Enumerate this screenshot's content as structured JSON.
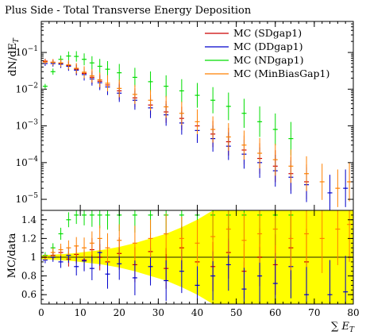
{
  "chart_data": {
    "type": "scatter",
    "title": "Plus Side - Total Transverse Energy Deposition",
    "xlabel": "∑ E_T",
    "ylabel": "dN/dE_T",
    "ratio_ylabel": "MC/data",
    "xlim": [
      0,
      80
    ],
    "ylim": [
      5e-06,
      0.7
    ],
    "yscale": "log",
    "ratio_ylim": [
      0.5,
      1.5
    ],
    "x_ticks": [
      "0",
      "10",
      "20",
      "30",
      "40",
      "50",
      "60",
      "70",
      "80"
    ],
    "y_ticks": [
      {
        "value": 0.1,
        "label": "10^-1"
      },
      {
        "value": 0.01,
        "label": "10^-2"
      },
      {
        "value": 0.001,
        "label": "10^-3"
      },
      {
        "value": 0.0001,
        "label": "10^-4"
      },
      {
        "value": 1e-05,
        "label": "10^-5"
      }
    ],
    "ratio_ticks": [
      "0.6",
      "0.8",
      "1",
      "1.2",
      "1.4"
    ],
    "legend_position": "top-right",
    "data_band_color": "#ffff00",
    "reference_line_color": "#6b6b00",
    "series": [
      {
        "name": "MC (SDgap1)",
        "color": "#cc0000",
        "x": [
          1,
          3,
          5,
          7,
          9,
          11,
          13,
          15,
          17,
          20,
          24,
          28,
          32,
          36,
          40,
          44,
          48,
          52,
          56,
          60,
          64,
          68
        ],
        "y": [
          0.058,
          0.054,
          0.05,
          0.044,
          0.035,
          0.027,
          0.021,
          0.0165,
          0.013,
          0.009,
          0.0058,
          0.0037,
          0.0024,
          0.0016,
          0.001,
          0.0006,
          0.00037,
          0.00022,
          0.00013,
          8e-05,
          5e-05,
          3e-05
        ],
        "ratio": [
          1.0,
          1.02,
          1.05,
          0.98,
          1.03,
          0.97,
          1.08,
          1.0,
          0.95,
          1.04,
          0.92,
          1.06,
          0.88,
          1.1,
          0.95,
          0.9,
          1.05,
          0.85,
          1.0,
          0.92,
          1.1,
          0.95
        ]
      },
      {
        "name": "MC (DDgap1)",
        "color": "#0000cc",
        "x": [
          1,
          3,
          5,
          7,
          9,
          11,
          13,
          15,
          17,
          20,
          24,
          28,
          32,
          36,
          40,
          44,
          48,
          52,
          56,
          60,
          64,
          68,
          74,
          78
        ],
        "y": [
          0.05,
          0.05,
          0.048,
          0.042,
          0.033,
          0.025,
          0.019,
          0.015,
          0.0115,
          0.0078,
          0.005,
          0.0031,
          0.002,
          0.0012,
          0.00075,
          0.00045,
          0.00028,
          0.00017,
          0.0001,
          6e-05,
          4e-05,
          2.5e-05,
          1.5e-05,
          2e-05
        ],
        "ratio": [
          0.97,
          1.0,
          0.95,
          1.02,
          0.9,
          0.96,
          0.88,
          1.05,
          0.82,
          0.93,
          0.78,
          0.9,
          0.75,
          0.85,
          0.7,
          0.8,
          0.92,
          0.66,
          0.8,
          0.72,
          0.9,
          0.6,
          0.6,
          0.63
        ]
      },
      {
        "name": "MC (NDgap1)",
        "color": "#00dd00",
        "x": [
          1,
          3,
          5,
          7,
          9,
          11,
          13,
          15,
          17,
          20,
          24,
          28,
          32,
          36,
          40,
          44,
          48,
          52,
          56,
          60,
          64
        ],
        "y": [
          0.012,
          0.03,
          0.065,
          0.08,
          0.078,
          0.065,
          0.052,
          0.042,
          0.035,
          0.028,
          0.021,
          0.016,
          0.012,
          0.009,
          0.0068,
          0.005,
          0.0034,
          0.0022,
          0.0013,
          0.0008,
          0.00045
        ],
        "ratio": [
          1.02,
          1.1,
          1.25,
          1.4,
          1.45,
          1.45,
          1.45,
          1.45,
          1.45,
          1.45,
          1.45,
          1.45,
          1.45,
          1.45,
          1.45,
          1.45,
          1.45,
          1.45,
          1.45,
          1.45,
          1.45
        ]
      },
      {
        "name": "MC (MinBiasGap1)",
        "color": "#ff8000",
        "x": [
          1,
          3,
          5,
          7,
          9,
          11,
          13,
          15,
          17,
          20,
          24,
          28,
          32,
          36,
          40,
          44,
          48,
          52,
          56,
          60,
          64,
          68,
          72,
          76,
          79
        ],
        "y": [
          0.055,
          0.054,
          0.052,
          0.046,
          0.037,
          0.029,
          0.023,
          0.018,
          0.0145,
          0.0105,
          0.0072,
          0.005,
          0.0033,
          0.0022,
          0.0013,
          0.0008,
          0.0005,
          0.0003,
          0.00018,
          0.00012,
          8e-05,
          5e-05,
          3e-05,
          2e-05,
          3e-05
        ],
        "ratio": [
          1.0,
          1.05,
          1.08,
          1.1,
          1.12,
          1.1,
          1.15,
          1.2,
          1.1,
          1.18,
          1.15,
          1.2,
          1.25,
          1.2,
          1.15,
          1.22,
          1.3,
          1.18,
          1.25,
          1.3,
          1.2,
          1.25,
          1.2,
          1.3,
          1.35
        ]
      }
    ],
    "data_band": {
      "x": [
        0,
        4,
        8,
        12,
        16,
        20,
        24,
        28,
        32,
        36,
        40,
        44,
        48,
        52,
        56,
        60,
        64,
        68,
        72,
        76,
        80
      ],
      "halfwidth": [
        0.02,
        0.03,
        0.04,
        0.06,
        0.08,
        0.11,
        0.15,
        0.2,
        0.25,
        0.32,
        0.4,
        0.5,
        0.5,
        0.5,
        0.5,
        0.5,
        0.5,
        0.5,
        0.5,
        0.5,
        0.5
      ]
    }
  }
}
